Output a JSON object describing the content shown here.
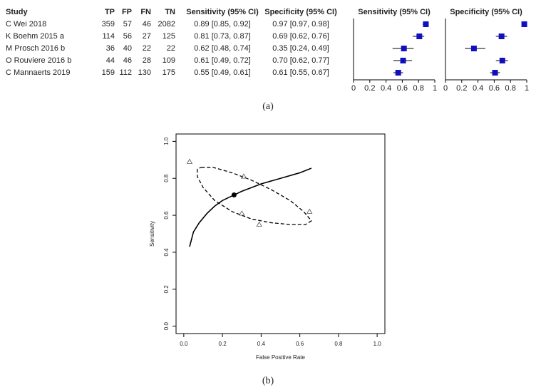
{
  "chart_data": [
    {
      "type": "forest",
      "label": "(a)",
      "columns": [
        "Study",
        "TP",
        "FP",
        "FN",
        "TN",
        "Sensitivity (95% CI)",
        "Specificity (95% CI)",
        "Sensitivity (95% CI)",
        "Specificity (95% CI)"
      ],
      "studies": [
        "C Wei 2018",
        "K Boehm 2015 a",
        "M Prosch 2016 b",
        "O Rouviere 2016 b",
        "C Mannaerts 2019"
      ],
      "tp": [
        359,
        114,
        36,
        44,
        159
      ],
      "fp": [
        57,
        56,
        40,
        46,
        112
      ],
      "fn": [
        46,
        27,
        22,
        28,
        130
      ],
      "tn": [
        2082,
        125,
        22,
        109,
        175
      ],
      "sensitivity": {
        "values": [
          0.89,
          0.81,
          0.62,
          0.61,
          0.55
        ],
        "lower": [
          0.85,
          0.73,
          0.48,
          0.49,
          0.49
        ],
        "upper": [
          0.92,
          0.87,
          0.74,
          0.72,
          0.61
        ],
        "value_labels": [
          "0.89 [0.85, 0.92]",
          "0.81 [0.73, 0.87]",
          "0.62 [0.48, 0.74]",
          "0.61 [0.49, 0.72]",
          "0.55 [0.49, 0.61]"
        ]
      },
      "specificity": {
        "values": [
          0.97,
          0.69,
          0.35,
          0.7,
          0.61
        ],
        "lower": [
          0.97,
          0.62,
          0.24,
          0.62,
          0.55
        ],
        "upper": [
          0.98,
          0.76,
          0.49,
          0.77,
          0.67
        ],
        "value_labels": [
          "0.97 [0.97, 0.98]",
          "0.69 [0.62, 0.76]",
          "0.35 [0.24, 0.49]",
          "0.70 [0.62, 0.77]",
          "0.61 [0.55, 0.67]"
        ]
      },
      "color": "#1010c0",
      "xlim": [
        0,
        1
      ],
      "xticks": [
        0,
        0.2,
        0.4,
        0.6,
        0.8,
        1
      ]
    },
    {
      "type": "sroc",
      "label": "(b)",
      "xlabel": "False Positive Rate",
      "ylabel": "Sensitivity",
      "xlim": [
        -0.04,
        1.04
      ],
      "ylim": [
        -0.04,
        1.04
      ],
      "xticks": [
        {
          "value": 0,
          "label": "0.0"
        },
        {
          "value": 0.2,
          "label": "0.2"
        },
        {
          "value": 0.4,
          "label": "0.4"
        },
        {
          "value": 0.6,
          "label": "0.6"
        },
        {
          "value": 0.8,
          "label": "0.8"
        },
        {
          "value": 1,
          "label": "1.0"
        }
      ],
      "yticks": [
        {
          "value": 0,
          "label": "0.0"
        },
        {
          "value": 0.2,
          "label": "0.2"
        },
        {
          "value": 0.4,
          "label": "0.4"
        },
        {
          "value": 0.6,
          "label": "0.6"
        },
        {
          "value": 0.8,
          "label": "0.8"
        },
        {
          "value": 1,
          "label": "1.0"
        }
      ],
      "studies": {
        "x": [
          0.03,
          0.31,
          0.65,
          0.3,
          0.39
        ],
        "y": [
          0.89,
          0.81,
          0.62,
          0.61,
          0.55
        ]
      },
      "summary": {
        "x": [
          0.26
        ],
        "y": [
          0.71
        ]
      },
      "curve": {
        "x": [
          0.03,
          0.05,
          0.08,
          0.12,
          0.16,
          0.2,
          0.26,
          0.3,
          0.4,
          0.5,
          0.6,
          0.66
        ],
        "y": [
          0.43,
          0.51,
          0.56,
          0.61,
          0.65,
          0.68,
          0.71,
          0.73,
          0.77,
          0.8,
          0.83,
          0.855
        ]
      },
      "region": {
        "x": [
          0.09,
          0.15,
          0.25,
          0.35,
          0.45,
          0.55,
          0.62,
          0.66,
          0.63,
          0.55,
          0.45,
          0.35,
          0.25,
          0.16,
          0.1,
          0.07,
          0.07,
          0.09
        ],
        "y": [
          0.86,
          0.86,
          0.83,
          0.79,
          0.74,
          0.68,
          0.62,
          0.57,
          0.55,
          0.55,
          0.56,
          0.58,
          0.62,
          0.68,
          0.75,
          0.81,
          0.85,
          0.86
        ]
      }
    }
  ]
}
